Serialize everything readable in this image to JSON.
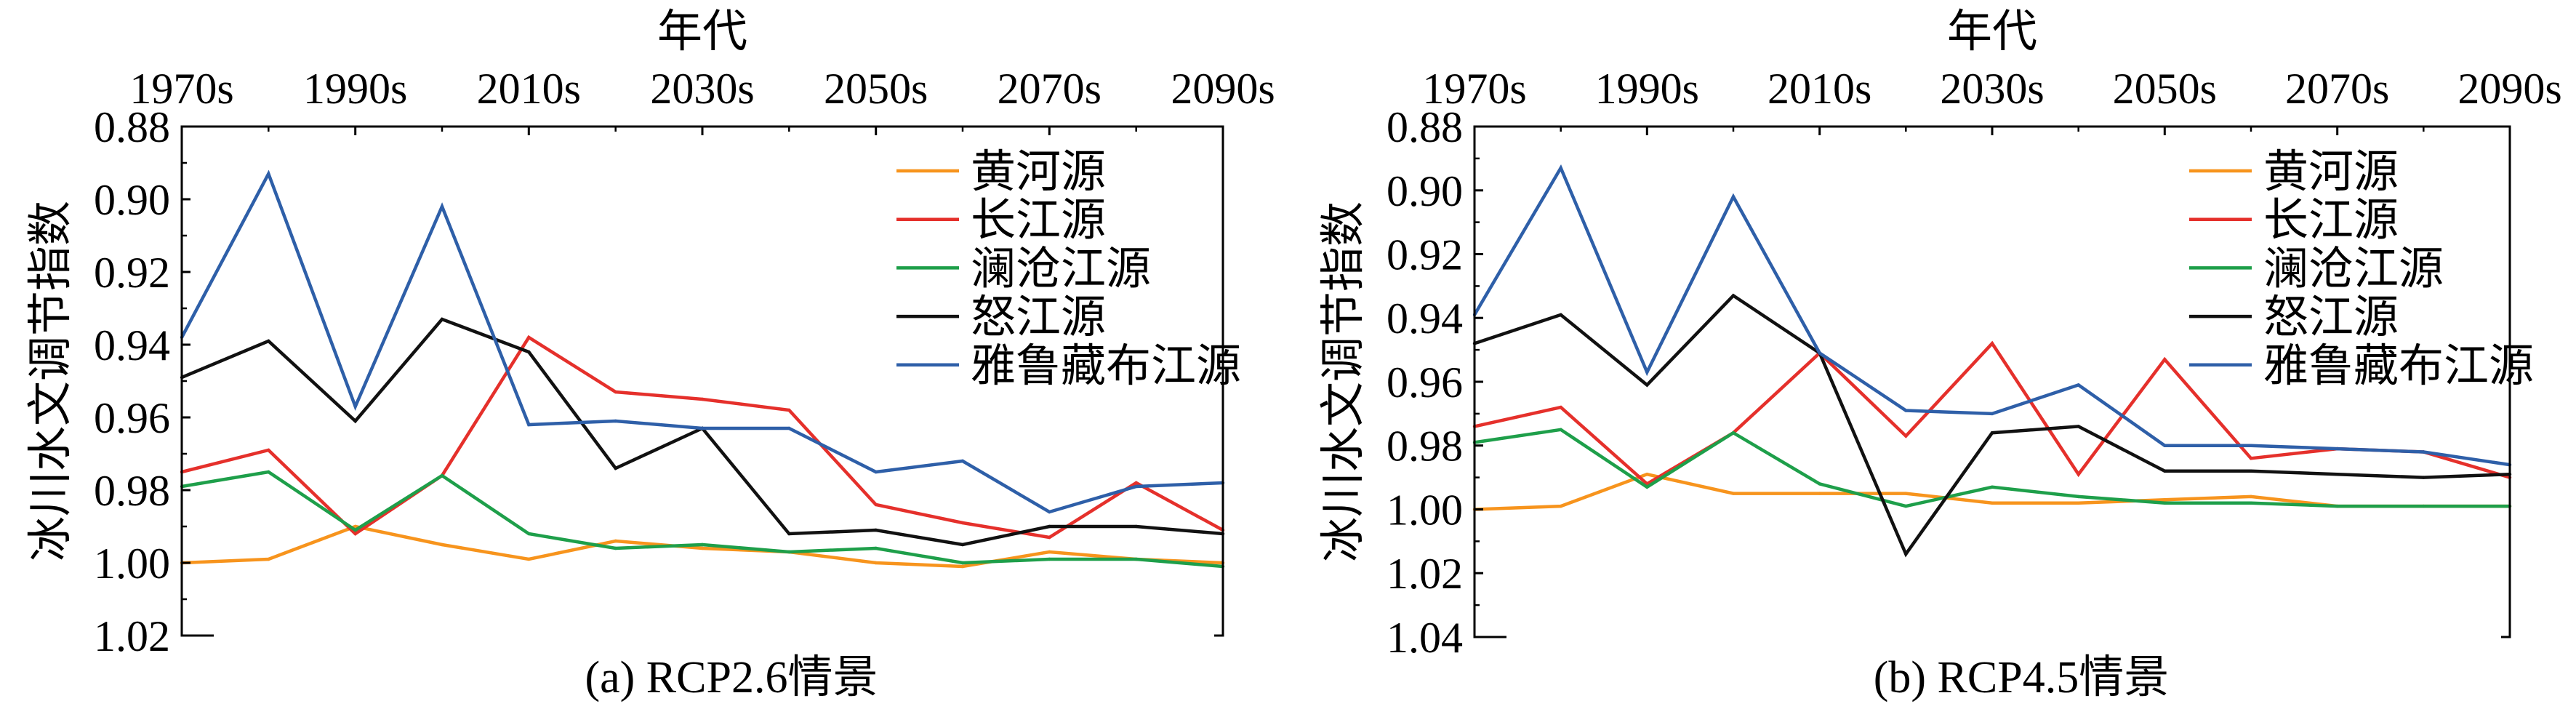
{
  "chart_data": [
    {
      "type": "line",
      "title": "(a) RCP2.6情景",
      "xlabel": "年代",
      "ylabel": "冰川水文调节指数",
      "xaxis_position": "top",
      "x": [
        1970,
        1980,
        1990,
        2000,
        2010,
        2020,
        2030,
        2040,
        2050,
        2060,
        2070,
        2080,
        2090
      ],
      "xlim": [
        1970,
        2090
      ],
      "xticks": [
        "1970s",
        "1990s",
        "2010s",
        "2030s",
        "2050s",
        "2070s",
        "2090s"
      ],
      "ylim": [
        0.88,
        1.02
      ],
      "y_inverted": true,
      "yticks": [
        "0.88",
        "0.90",
        "0.92",
        "0.94",
        "0.96",
        "0.98",
        "1.00",
        "1.02"
      ],
      "grid": false,
      "legend": "top-right",
      "series": [
        {
          "name": "黄河源",
          "color": "#F7941D",
          "values": [
            1.0,
            0.999,
            0.99,
            0.995,
            0.999,
            0.994,
            0.996,
            0.997,
            1.0,
            1.001,
            0.997,
            0.999,
            1.0
          ]
        },
        {
          "name": "长江源",
          "color": "#E5302B",
          "values": [
            0.975,
            0.969,
            0.992,
            0.976,
            0.938,
            0.953,
            0.955,
            0.958,
            0.984,
            0.989,
            0.993,
            0.978,
            0.991
          ]
        },
        {
          "name": "澜沧江源",
          "color": "#1E9F4A",
          "values": [
            0.979,
            0.975,
            0.991,
            0.976,
            0.992,
            0.996,
            0.995,
            0.997,
            0.996,
            1.0,
            0.999,
            0.999,
            1.001
          ]
        },
        {
          "name": "怒江源",
          "color": "#111111",
          "values": [
            0.949,
            0.939,
            0.961,
            0.933,
            0.942,
            0.974,
            0.963,
            0.992,
            0.991,
            0.995,
            0.99,
            0.99,
            0.992
          ]
        },
        {
          "name": "雅鲁藏布江源",
          "color": "#2E5FA8",
          "values": [
            0.938,
            0.893,
            0.957,
            0.902,
            0.962,
            0.961,
            0.963,
            0.963,
            0.975,
            0.972,
            0.986,
            0.979,
            0.978
          ]
        }
      ]
    },
    {
      "type": "line",
      "title": "(b) RCP4.5情景",
      "xlabel": "年代",
      "ylabel": "冰川水文调节指数",
      "xaxis_position": "top",
      "x": [
        1970,
        1980,
        1990,
        2000,
        2010,
        2020,
        2030,
        2040,
        2050,
        2060,
        2070,
        2080,
        2090
      ],
      "xlim": [
        1970,
        2090
      ],
      "xticks": [
        "1970s",
        "1990s",
        "2010s",
        "2030s",
        "2050s",
        "2070s",
        "2090s"
      ],
      "ylim": [
        0.88,
        1.04
      ],
      "y_inverted": true,
      "yticks": [
        "0.88",
        "0.90",
        "0.92",
        "0.94",
        "0.96",
        "0.98",
        "1.00",
        "1.02",
        "1.04"
      ],
      "grid": false,
      "legend": "top-right",
      "series": [
        {
          "name": "黄河源",
          "color": "#F7941D",
          "values": [
            1.0,
            0.999,
            0.989,
            0.995,
            0.995,
            0.995,
            0.998,
            0.998,
            0.997,
            0.996,
            0.999,
            0.999,
            0.999
          ]
        },
        {
          "name": "长江源",
          "color": "#E5302B",
          "values": [
            0.974,
            0.968,
            0.992,
            0.976,
            0.951,
            0.977,
            0.948,
            0.989,
            0.953,
            0.984,
            0.981,
            0.982,
            0.99
          ]
        },
        {
          "name": "澜沧江源",
          "color": "#1E9F4A",
          "values": [
            0.979,
            0.975,
            0.993,
            0.976,
            0.992,
            0.999,
            0.993,
            0.996,
            0.998,
            0.998,
            0.999,
            0.999,
            0.999
          ]
        },
        {
          "name": "怒江源",
          "color": "#111111",
          "values": [
            0.948,
            0.939,
            0.961,
            0.933,
            0.951,
            1.014,
            0.976,
            0.974,
            0.988,
            0.988,
            0.989,
            0.99,
            0.989
          ]
        },
        {
          "name": "雅鲁藏布江源",
          "color": "#2E5FA8",
          "values": [
            0.939,
            0.893,
            0.957,
            0.902,
            0.951,
            0.969,
            0.97,
            0.961,
            0.98,
            0.98,
            0.981,
            0.982,
            0.986
          ]
        }
      ]
    }
  ]
}
